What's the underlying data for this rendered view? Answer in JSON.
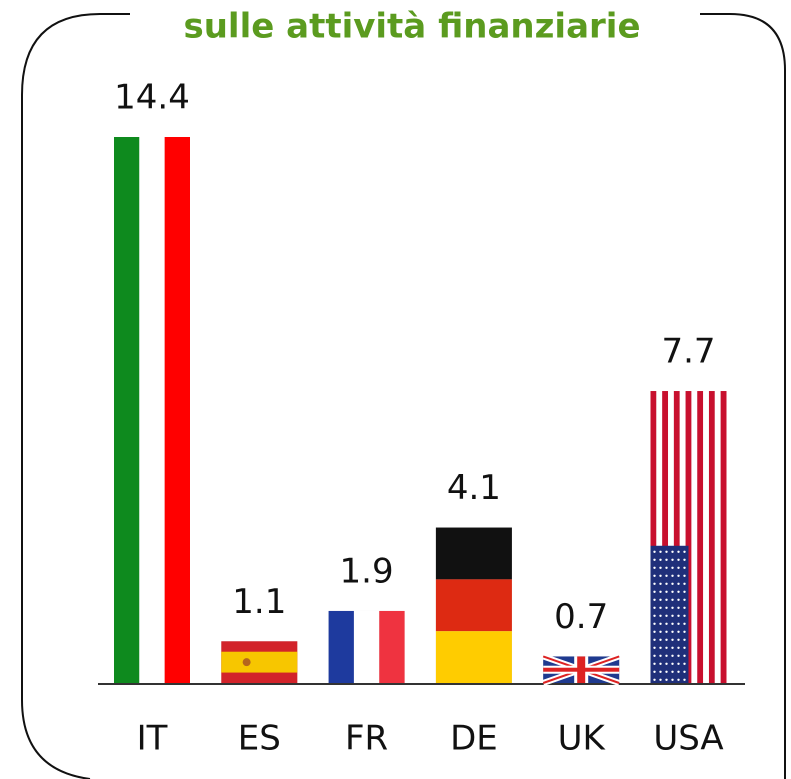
{
  "chart_data": {
    "type": "bar",
    "title": "sulle attività finanziarie",
    "categories": [
      "IT",
      "ES",
      "FR",
      "DE",
      "UK",
      "USA"
    ],
    "values": [
      14.4,
      1.1,
      1.9,
      4.1,
      0.7,
      7.7
    ]
  }
}
